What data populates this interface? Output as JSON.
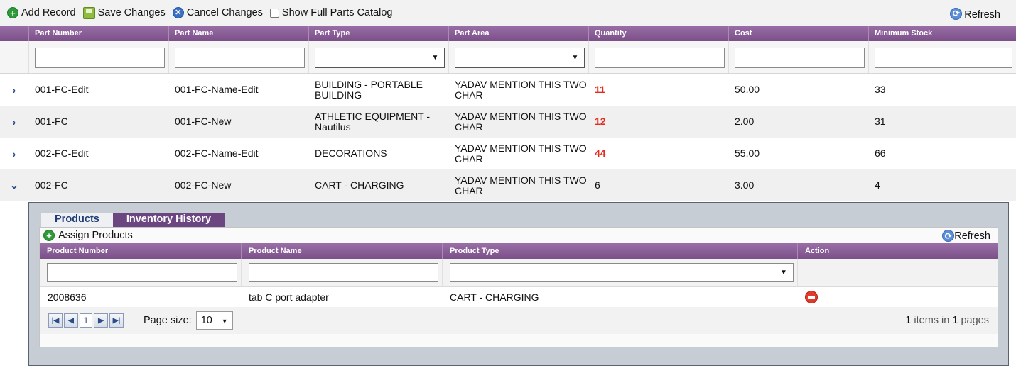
{
  "toolbar": {
    "add_label": "Add Record",
    "save_label": "Save Changes",
    "cancel_label": "Cancel Changes",
    "catalog_label": "Show Full Parts Catalog",
    "refresh_label": "Refresh"
  },
  "grid": {
    "columns": [
      "Part Number",
      "Part Name",
      "Part Type",
      "Part Area",
      "Quantity",
      "Cost",
      "Minimum Stock"
    ],
    "rows": [
      {
        "part_number": "001-FC-Edit",
        "part_name": "001-FC-Name-Edit",
        "part_type": "BUILDING - PORTABLE BUILDING",
        "part_area": "YADAV MENTION THIS TWO CHAR",
        "quantity": "11",
        "cost": "50.00",
        "min_stock": "33"
      },
      {
        "part_number": "001-FC",
        "part_name": "001-FC-New",
        "part_type": "ATHLETIC EQUIPMENT - Nautilus",
        "part_area": "YADAV MENTION THIS TWO CHAR",
        "quantity": "12",
        "cost": "2.00",
        "min_stock": "31"
      },
      {
        "part_number": "002-FC-Edit",
        "part_name": "002-FC-Name-Edit",
        "part_type": "DECORATIONS",
        "part_area": "YADAV MENTION THIS TWO CHAR",
        "quantity": "44",
        "cost": "55.00",
        "min_stock": "66"
      },
      {
        "part_number": "002-FC",
        "part_name": "002-FC-New",
        "part_type": "CART - CHARGING",
        "part_area": "YADAV MENTION THIS TWO CHAR",
        "quantity": "6",
        "cost": "3.00",
        "min_stock": "4"
      }
    ]
  },
  "detail": {
    "tabs": [
      "Products",
      "Inventory History"
    ],
    "assign_label": "Assign Products",
    "refresh_label": "Refresh",
    "columns": [
      "Product Number",
      "Product Name",
      "Product Type",
      "Action"
    ],
    "rows": [
      {
        "product_number": "2008636",
        "product_name": "tab C port adapter",
        "product_type": "CART - CHARGING"
      }
    ],
    "pager": {
      "current_page": "1",
      "page_size_label": "Page size:",
      "page_size": "10",
      "items": "1",
      "items_text": "items in",
      "pages": "1",
      "pages_text": "pages"
    }
  },
  "colors": {
    "header_purple": "#7b4f88",
    "quantity_alert": "#e52b1e",
    "tab_inactive": "#6b4680",
    "panel_bg": "#c7cdd5"
  }
}
